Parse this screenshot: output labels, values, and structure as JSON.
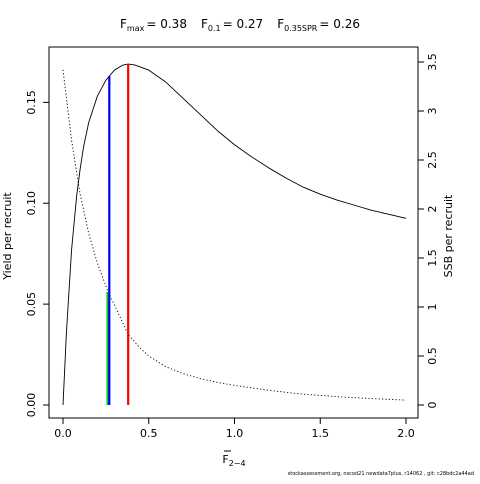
{
  "chart_data": {
    "type": "line",
    "title_parts": [
      {
        "base": "F",
        "sub": "max",
        "value": "= 0.38"
      },
      {
        "base": "F",
        "sub": "0.1",
        "value": "= 0.27"
      },
      {
        "base": "F",
        "sub": "0.35SPR",
        "value": "= 0.26"
      }
    ],
    "xlabel_base": "F",
    "xlabel_sub": "2−4",
    "ylabel": "Yield per recruit",
    "ylabel_right": "SSB per recruit",
    "xlim": [
      0,
      2
    ],
    "ylim": [
      0,
      0.17
    ],
    "ylim_right": [
      0,
      3.5
    ],
    "x_ticks": [
      0,
      0.5,
      1,
      1.5,
      2
    ],
    "x_tick_labels": [
      "0.0",
      "0.5",
      "1.0",
      "1.5",
      "2.0"
    ],
    "y_ticks": [
      0,
      0.05,
      0.1,
      0.15
    ],
    "y_tick_labels": [
      "0.00",
      "0.05",
      "0.10",
      "0.15"
    ],
    "y_right_ticks": [
      0,
      0.5,
      1,
      1.5,
      2,
      2.5,
      3,
      3.5
    ],
    "y_right_tick_labels": [
      "0",
      "0.5",
      "1",
      "1.5",
      "2",
      "2.5",
      "3",
      "3.5"
    ],
    "grid": false,
    "series": [
      {
        "name": "",
        "axis": "left",
        "style": "solid",
        "color": "#000000",
        "x": [
          0,
          0.02,
          0.05,
          0.08,
          0.1,
          0.12,
          0.15,
          0.2,
          0.25,
          0.27,
          0.3,
          0.35,
          0.38,
          0.42,
          0.5,
          0.6,
          0.7,
          0.8,
          0.9,
          1.0,
          1.1,
          1.2,
          1.3,
          1.4,
          1.5,
          1.6,
          1.7,
          1.8,
          1.9,
          2.0
        ],
        "values": [
          0,
          0.036,
          0.077,
          0.104,
          0.117,
          0.128,
          0.14,
          0.153,
          0.161,
          0.163,
          0.166,
          0.1685,
          0.169,
          0.1685,
          0.166,
          0.16,
          0.152,
          0.144,
          0.136,
          0.129,
          0.123,
          0.1175,
          0.1125,
          0.108,
          0.1045,
          0.1015,
          0.099,
          0.0965,
          0.0945,
          0.0925
        ]
      },
      {
        "name": "",
        "axis": "right",
        "style": "dotted",
        "color": "#000000",
        "x": [
          0,
          0.05,
          0.1,
          0.15,
          0.2,
          0.26,
          0.3,
          0.38,
          0.45,
          0.5,
          0.6,
          0.7,
          0.8,
          0.9,
          1.0,
          1.2,
          1.4,
          1.6,
          1.8,
          2.0
        ],
        "values": [
          3.42,
          2.7,
          2.15,
          1.75,
          1.45,
          1.17,
          1.02,
          0.72,
          0.58,
          0.5,
          0.39,
          0.32,
          0.27,
          0.23,
          0.2,
          0.15,
          0.11,
          0.085,
          0.065,
          0.05
        ]
      }
    ],
    "reference_lines": [
      {
        "label": "F0.35SPR",
        "x": 0.26,
        "y_top": 0.056,
        "color": "#00cc00"
      },
      {
        "label": "F0.1",
        "x": 0.27,
        "y_top": 0.163,
        "color": "#0000ff"
      },
      {
        "label": "Fmax",
        "x": 0.38,
        "y_top": 0.169,
        "color": "#ff0000"
      }
    ]
  },
  "footer": "stockassessment.org, nscod21 newdata7plus, r14062 , git: c28bdc2a44ad"
}
